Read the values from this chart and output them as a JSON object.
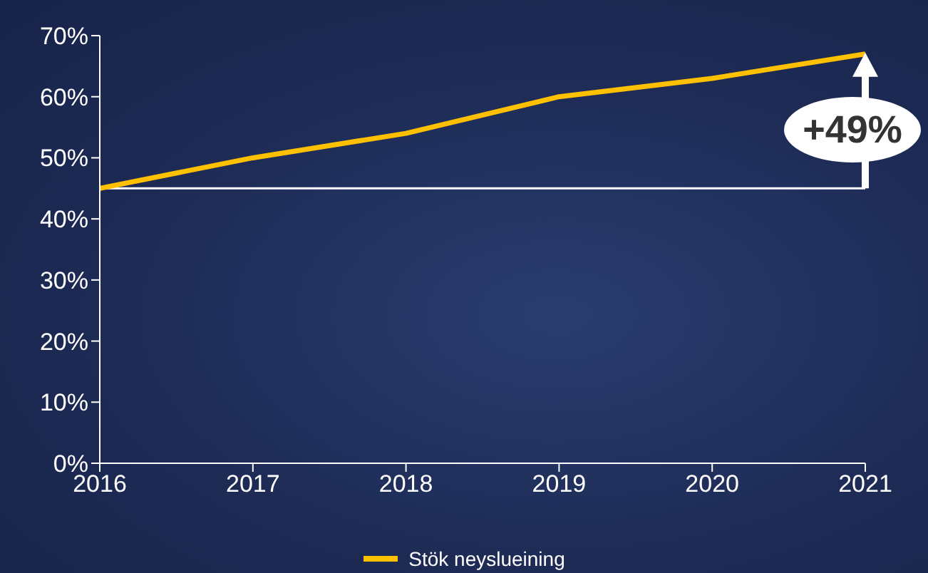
{
  "chart_data": {
    "type": "line",
    "x": [
      2016,
      2017,
      2018,
      2019,
      2020,
      2021
    ],
    "series": [
      {
        "name": "Stök neyslueining",
        "color": "#ffc000",
        "values": [
          45,
          50,
          54,
          60,
          63,
          67
        ]
      }
    ],
    "xlim": [
      2016,
      2021
    ],
    "xticks": [
      2016,
      2017,
      2018,
      2019,
      2020,
      2021
    ],
    "ylim": [
      0,
      70
    ],
    "yticks": [
      {
        "value": 0,
        "label": "0%"
      },
      {
        "value": 10,
        "label": "10%"
      },
      {
        "value": 20,
        "label": "20%"
      },
      {
        "value": 30,
        "label": "30%"
      },
      {
        "value": 40,
        "label": "40%"
      },
      {
        "value": 50,
        "label": "50%"
      },
      {
        "value": 60,
        "label": "60%"
      },
      {
        "value": 70,
        "label": "70%"
      }
    ],
    "ref_lines": [
      {
        "axis": "y",
        "value": 45,
        "color": "#ffffff"
      }
    ],
    "annotations": [
      "+49%"
    ],
    "legend": "bottom"
  }
}
